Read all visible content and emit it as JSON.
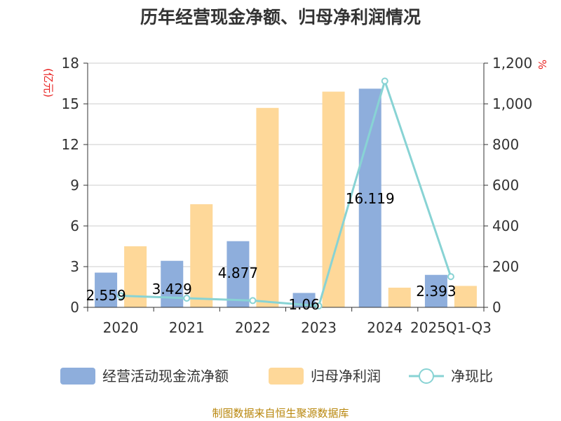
{
  "title": "历年经营现金净额、归母净利润情况",
  "left_unit": "(亿元)",
  "right_unit": "%",
  "source": "制图数据来自恒生聚源数据库",
  "colors": {
    "op_cash": "#8eaedc",
    "net_profit": "#fed899",
    "ratio": "#88d3d4",
    "grid": "#cccccc",
    "axis": "#333333",
    "unit": "#e8201f"
  },
  "chart_data": {
    "type": "bar",
    "categories": [
      "2020",
      "2021",
      "2022",
      "2023",
      "2024",
      "2025Q1-Q3"
    ],
    "series": [
      {
        "name": "经营活动现金流净额",
        "type": "bar",
        "axis": "left",
        "values": [
          2.559,
          3.429,
          4.877,
          1.06,
          16.119,
          2.393
        ]
      },
      {
        "name": "归母净利润",
        "type": "bar",
        "axis": "left",
        "values": [
          4.5,
          7.6,
          14.7,
          15.9,
          1.45,
          1.58
        ]
      },
      {
        "name": "净现比",
        "type": "line",
        "axis": "right",
        "values": [
          57,
          45,
          33,
          7,
          1112,
          151
        ]
      }
    ],
    "data_labels": [
      "2.559",
      "3.429",
      "4.877",
      "1.06",
      "16.119",
      "2.393"
    ],
    "y_left": {
      "min": 0,
      "max": 18,
      "ticks": [
        "0",
        "3",
        "6",
        "9",
        "12",
        "15",
        "18"
      ]
    },
    "y_right": {
      "min": 0,
      "max": 1200,
      "ticks": [
        "0",
        "200",
        "400",
        "600",
        "800",
        "1,000",
        "1,200"
      ]
    },
    "grid": true,
    "legend_position": "bottom"
  }
}
